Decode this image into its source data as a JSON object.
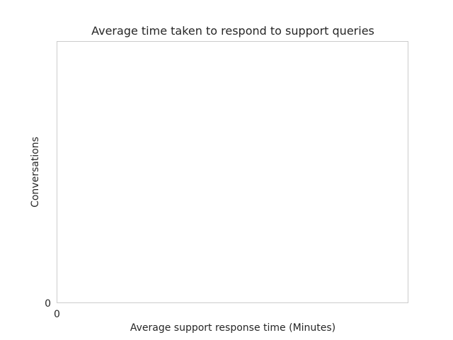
{
  "chart_data": {
    "type": "bar",
    "title": "Average time taken to respond to support queries",
    "xlabel": "Average support response time (Minutes)",
    "ylabel": "Conversations",
    "x_ticks": [
      "0"
    ],
    "y_ticks": [
      "0"
    ],
    "series": [],
    "grid": false
  }
}
